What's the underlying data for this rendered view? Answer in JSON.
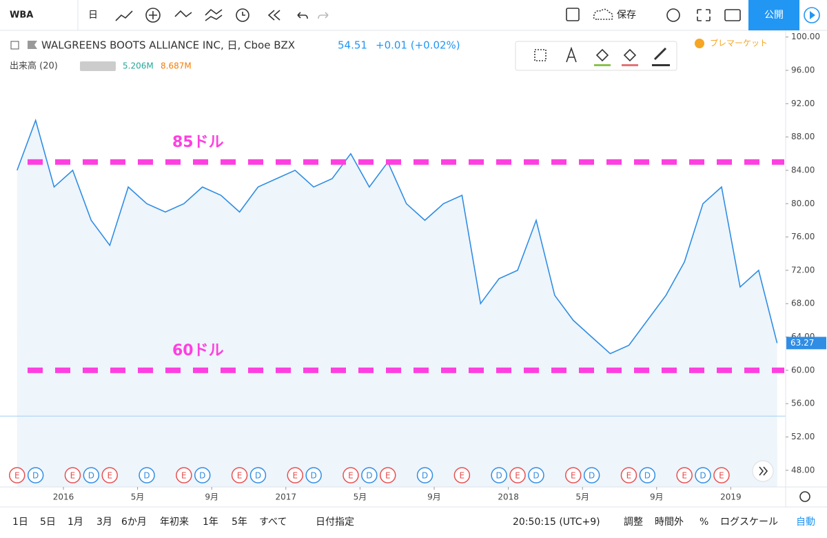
{
  "ui": {
    "toolbar": {
      "symbol": "WBA",
      "interval": "日",
      "save": "保存",
      "publish": "公開"
    },
    "header": {
      "title": "WALGREENS BOOTS ALLIANCE INC, 日, Cboe BZX",
      "change": "+0.01 (+0.02%)",
      "premarket": "プレマーケット"
    },
    "volume": {
      "label": "出来高 (20)",
      "value_1": "5.206M",
      "value_2": "8.687M"
    },
    "ranges": [
      "1日",
      "5日",
      "1月",
      "3月",
      "6か月",
      "年初来",
      "1年",
      "5年",
      "すべて"
    ],
    "date_range": "日付指定",
    "clock": "20:50:15 (UTC+9)",
    "bottom_right": [
      "調整",
      "時間外",
      "%",
      "ログスケール",
      "自動"
    ]
  },
  "chart_data": {
    "type": "line",
    "color": "#2f8de4",
    "area_color": "#eef5fb",
    "x": [
      "2015-10",
      "2015-11",
      "2015-12",
      "2016-01",
      "2016-02",
      "2016-03",
      "2016-04",
      "2016-05",
      "2016-06",
      "2016-07",
      "2016-08",
      "2016-09",
      "2016-10",
      "2016-11",
      "2016-12",
      "2017-01",
      "2017-02",
      "2017-03",
      "2017-04",
      "2017-05",
      "2017-06",
      "2017-07",
      "2017-08",
      "2017-09",
      "2017-10",
      "2017-11",
      "2017-12",
      "2018-01",
      "2018-02",
      "2018-03",
      "2018-04",
      "2018-05",
      "2018-06",
      "2018-07",
      "2018-08",
      "2018-09",
      "2018-10",
      "2018-11",
      "2018-12",
      "2019-01",
      "2019-02",
      "2019-03"
    ],
    "values": [
      84,
      90,
      82,
      84,
      78,
      75,
      82,
      80,
      79,
      80,
      82,
      81,
      79,
      82,
      83,
      84,
      82,
      83,
      86,
      82,
      85,
      80,
      78,
      80,
      81,
      68,
      71,
      72,
      78,
      69,
      66,
      64,
      62,
      63,
      66,
      69,
      73,
      80,
      82,
      70,
      72,
      63.27
    ],
    "last_price": 63.27,
    "premarket_price": 54.51,
    "ylim": [
      46,
      100.8
    ],
    "yticks": [
      {
        "value": 48,
        "label": "48.00"
      },
      {
        "value": 52,
        "label": "52.00"
      },
      {
        "value": 56,
        "label": "56.00"
      },
      {
        "value": 60,
        "label": "60.00"
      },
      {
        "value": 64,
        "label": "64.00"
      },
      {
        "value": 68,
        "label": "68.00"
      },
      {
        "value": 72,
        "label": "72.00"
      },
      {
        "value": 76,
        "label": "76.00"
      },
      {
        "value": 80,
        "label": "80.00"
      },
      {
        "value": 84,
        "label": "84.00"
      },
      {
        "value": 88,
        "label": "88.00"
      },
      {
        "value": 92,
        "label": "92.00"
      },
      {
        "value": 96,
        "label": "96.00"
      },
      {
        "value": 100,
        "label": "100.00"
      }
    ],
    "xticks": [
      {
        "value": "2016-01",
        "label": "2016"
      },
      {
        "value": "2016-05",
        "label": "5月"
      },
      {
        "value": "2016-09",
        "label": "9月"
      },
      {
        "value": "2017-01",
        "label": "2017"
      },
      {
        "value": "2017-05",
        "label": "5月"
      },
      {
        "value": "2017-09",
        "label": "9月"
      },
      {
        "value": "2018-01",
        "label": "2018"
      },
      {
        "value": "2018-05",
        "label": "5月"
      },
      {
        "value": "2018-09",
        "label": "9月"
      },
      {
        "value": "2019-01",
        "label": "2019"
      }
    ],
    "hlines": [
      {
        "label": "85ドル",
        "value": 85,
        "color": "#ff3fe0"
      },
      {
        "label": "60ドル",
        "value": 60,
        "color": "#ff3fe0"
      }
    ],
    "event_colors": {
      "E": "#e84e4e",
      "D": "#2f8de4"
    },
    "events": [
      {
        "date": "2015-10",
        "label": "E"
      },
      {
        "date": "2015-11",
        "label": "D"
      },
      {
        "date": "2016-01",
        "label": "E"
      },
      {
        "date": "2016-02",
        "label": "D"
      },
      {
        "date": "2016-03",
        "label": "E"
      },
      {
        "date": "2016-05",
        "label": "D"
      },
      {
        "date": "2016-07",
        "label": "E"
      },
      {
        "date": "2016-08",
        "label": "D"
      },
      {
        "date": "2016-10",
        "label": "E"
      },
      {
        "date": "2016-11",
        "label": "D"
      },
      {
        "date": "2017-01",
        "label": "E"
      },
      {
        "date": "2017-02",
        "label": "D"
      },
      {
        "date": "2017-04",
        "label": "E"
      },
      {
        "date": "2017-05",
        "label": "D"
      },
      {
        "date": "2017-06",
        "label": "E"
      },
      {
        "date": "2017-08",
        "label": "D"
      },
      {
        "date": "2017-10",
        "label": "E"
      },
      {
        "date": "2017-12",
        "label": "D"
      },
      {
        "date": "2018-01",
        "label": "E"
      },
      {
        "date": "2018-02",
        "label": "D"
      },
      {
        "date": "2018-04",
        "label": "E"
      },
      {
        "date": "2018-05",
        "label": "D"
      },
      {
        "date": "2018-07",
        "label": "E"
      },
      {
        "date": "2018-08",
        "label": "D"
      },
      {
        "date": "2018-10",
        "label": "E"
      },
      {
        "date": "2018-11",
        "label": "D"
      },
      {
        "date": "2018-12",
        "label": "E"
      }
    ]
  }
}
